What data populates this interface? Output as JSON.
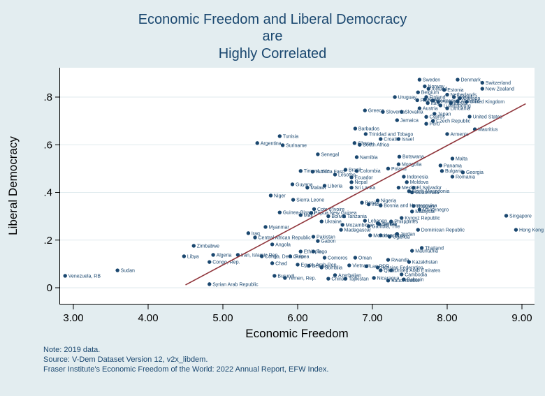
{
  "notes": [
    "Note: 2019 data.",
    "Source: V-Dem Dataset Version 12, v2x_libdem.",
    "Fraser Institute's Economic Freedom of the World: 2022 Annual Report, EFW Index."
  ],
  "colors": {
    "background": "#e3edf0",
    "plot_background": "#ffffff",
    "grid": "#dfeaee",
    "marker": "#1a476f",
    "label": "#1a476f",
    "trend_line": "#90353b",
    "axis": "#000000",
    "title": "#1a476f",
    "note": "#1a476f"
  },
  "chart_data": {
    "type": "scatter",
    "title": "Economic Freedom and Liberal Democracy are Highly Correlated",
    "title_lines": [
      "Economic Freedom and Liberal Democracy",
      "are",
      "Highly Correlated"
    ],
    "xlabel": "Economic Freedom",
    "ylabel": "Liberal Democracy",
    "xlim": [
      2.81,
      9.15
    ],
    "ylim": [
      -0.07,
      0.92
    ],
    "grid": true,
    "legend": "none",
    "xticks": {
      "values": [
        3,
        4,
        5,
        6,
        7,
        8,
        9
      ],
      "labels": [
        "3.00",
        "4.00",
        "5.00",
        "6.00",
        "7.00",
        "8.00",
        "9.00"
      ]
    },
    "yticks": {
      "values": [
        0,
        0.2,
        0.4,
        0.6,
        0.8
      ],
      "labels": [
        "0",
        ".2",
        ".4",
        ".6",
        ".8"
      ]
    },
    "trend_line": {
      "x1": 4.5,
      "y1": 0.012,
      "x2": 9.05,
      "y2": 0.772
    },
    "point_format": [
      "label",
      "x",
      "y"
    ],
    "points": [
      [
        "Venezuela, RB",
        2.89,
        0.05
      ],
      [
        "Sudan",
        3.59,
        0.073
      ],
      [
        "Libya",
        4.48,
        0.132
      ],
      [
        "Zimbabwe",
        4.61,
        0.176
      ],
      [
        "Syrian Arab Republic",
        4.82,
        0.015
      ],
      [
        "Congo, Rep.",
        4.82,
        0.108
      ],
      [
        "Algeria",
        4.87,
        0.138
      ],
      [
        "Iran, Islamic Rep.",
        5.2,
        0.138
      ],
      [
        "Iraq",
        5.34,
        0.229
      ],
      [
        "Central African Republic",
        5.43,
        0.211
      ],
      [
        "Congo, Dem. Rep.",
        5.52,
        0.132
      ],
      [
        "Myanmar",
        5.57,
        0.255
      ],
      [
        "Niger",
        5.64,
        0.387
      ],
      [
        "Angola",
        5.66,
        0.182
      ],
      [
        "Chad",
        5.66,
        0.103
      ],
      [
        "Burundi",
        5.69,
        0.05
      ],
      [
        "Guinea-Bissau",
        5.76,
        0.316
      ],
      [
        "Tunisia",
        5.76,
        0.636
      ],
      [
        "Argentina",
        5.46,
        0.607
      ],
      [
        "Suriname",
        5.8,
        0.598
      ],
      [
        "Yemen, Rep.",
        5.83,
        0.041
      ],
      [
        "Guinea",
        5.9,
        0.132
      ],
      [
        "Guyana",
        5.93,
        0.434
      ],
      [
        "Sierra Leone",
        5.94,
        0.369
      ],
      [
        "Egypt, Arab Rep.",
        6.0,
        0.097
      ],
      [
        "Timor-Leste",
        6.04,
        0.49
      ],
      [
        "Ethiopia",
        6.04,
        0.152
      ],
      [
        "Mali",
        6.04,
        0.305
      ],
      [
        "Malawi",
        6.13,
        0.42
      ],
      [
        "Belarus",
        6.15,
        0.092
      ],
      [
        "Papua New Guinea",
        6.18,
        0.314
      ],
      [
        "Togo",
        6.21,
        0.152
      ],
      [
        "Burkina Faso",
        6.2,
        0.487
      ],
      [
        "Pakistan",
        6.21,
        0.214
      ],
      [
        "Cote d'Ivoire",
        6.22,
        0.33
      ],
      [
        "Senegal",
        6.27,
        0.56
      ],
      [
        "Gabon",
        6.27,
        0.196
      ],
      [
        "Somalia",
        6.32,
        0.085
      ],
      [
        "Ukraine",
        6.32,
        0.278
      ],
      [
        "Liberia",
        6.36,
        0.428
      ],
      [
        "Comoros",
        6.36,
        0.126
      ],
      [
        "Bolivia",
        6.41,
        0.3
      ],
      [
        "China",
        6.41,
        0.038
      ],
      [
        "Azerbaijan",
        6.5,
        0.053
      ],
      [
        "Lesotho",
        6.5,
        0.475
      ],
      [
        "Madagascar",
        6.58,
        0.243
      ],
      [
        "Mozambique",
        6.6,
        0.264
      ],
      [
        "Tanzania",
        6.62,
        0.3
      ],
      [
        "Brazil",
        6.64,
        0.495
      ],
      [
        "Tajikistan",
        6.64,
        0.038
      ],
      [
        "Nepal",
        6.72,
        0.443
      ],
      [
        "Sri Lanka",
        6.72,
        0.42
      ],
      [
        "Ecuador",
        6.72,
        0.463
      ],
      [
        "Ghana",
        6.76,
        0.607
      ],
      [
        "Barbados",
        6.77,
        0.668
      ],
      [
        "Oman",
        6.77,
        0.126
      ],
      [
        "Colombia",
        6.79,
        0.49
      ],
      [
        "Namibia",
        6.79,
        0.548
      ],
      [
        "South Africa",
        6.83,
        0.6
      ],
      [
        "Benin",
        6.86,
        0.357
      ],
      [
        "Greece",
        6.9,
        0.744
      ],
      [
        "Lebanon",
        6.9,
        0.281
      ],
      [
        "Trinidad and Tobago",
        6.91,
        0.645
      ],
      [
        "Vietnam",
        6.69,
        0.094
      ],
      [
        "Lao PDR",
        6.92,
        0.09
      ],
      [
        "India",
        6.95,
        0.35
      ],
      [
        "Gambia, The",
        6.95,
        0.258
      ],
      [
        "Morocco",
        6.97,
        0.22
      ],
      [
        "Nicaragua",
        7.02,
        0.041
      ],
      [
        "Nigeria",
        7.07,
        0.366
      ],
      [
        "Zambia",
        7.07,
        0.27
      ],
      [
        "Russian Federation",
        7.07,
        0.085
      ],
      [
        "Serbia",
        7.09,
        0.267
      ],
      [
        "Croatia",
        7.11,
        0.624
      ],
      [
        "Bosnia and Herzegovina",
        7.11,
        0.345
      ],
      [
        "Honduras",
        7.11,
        0.22
      ],
      [
        "Qatar",
        7.11,
        0.073
      ],
      [
        "Slovenia",
        7.14,
        0.738
      ],
      [
        "Poland",
        7.21,
        0.5
      ],
      [
        "Rwanda",
        7.21,
        0.117
      ],
      [
        "Saudi Arabia",
        7.21,
        0.03
      ],
      [
        "Uganda",
        7.23,
        0.214
      ],
      [
        "Philippines",
        7.25,
        0.278
      ],
      [
        "United Arab Emirates",
        7.25,
        0.073
      ],
      [
        "Uruguay",
        7.3,
        0.8
      ],
      [
        "Jamaica",
        7.33,
        0.703
      ],
      [
        "Jordan",
        7.33,
        0.226
      ],
      [
        "Mongolia",
        7.35,
        0.518
      ],
      [
        "Mexico",
        7.35,
        0.42
      ],
      [
        "Israel",
        7.35,
        0.624
      ],
      [
        "Botswana",
        7.36,
        0.55
      ],
      [
        "Slovakia",
        7.39,
        0.738
      ],
      [
        "Kyrgyz Republic",
        7.39,
        0.293
      ],
      [
        "Cambodia",
        7.39,
        0.056
      ],
      [
        "Indonesia",
        7.42,
        0.466
      ],
      [
        "Bahrain",
        7.42,
        0.035
      ],
      [
        "Moldova",
        7.46,
        0.443
      ],
      [
        "Kazakhstan",
        7.49,
        0.108
      ],
      [
        "North Macedonia",
        7.49,
        0.405
      ],
      [
        "Guatemala",
        7.53,
        0.4
      ],
      [
        "Malaysia",
        7.53,
        0.32
      ],
      [
        "Mauritania",
        7.53,
        0.155
      ],
      [
        "Hungary",
        7.55,
        0.343
      ],
      [
        "El Salvador",
        7.55,
        0.42
      ],
      [
        "France",
        7.6,
        0.787
      ],
      [
        "Belgium",
        7.61,
        0.82
      ],
      [
        "Dominican Republic",
        7.61,
        0.243
      ],
      [
        "Sweden",
        7.63,
        0.873
      ],
      [
        "Austria",
        7.63,
        0.753
      ],
      [
        "Montenegro",
        7.63,
        0.328
      ],
      [
        "Thailand",
        7.66,
        0.167
      ],
      [
        "Norway",
        7.7,
        0.845
      ],
      [
        "Spain",
        7.7,
        0.79
      ],
      [
        "Finland",
        7.72,
        0.8
      ],
      [
        "Peru",
        7.72,
        0.688
      ],
      [
        "Cyprus",
        7.72,
        0.717
      ],
      [
        "Italy",
        7.74,
        0.775
      ],
      [
        "Iceland",
        7.75,
        0.835
      ],
      [
        "Germany",
        7.81,
        0.785
      ],
      [
        "Czech Republic",
        7.81,
        0.7
      ],
      [
        "Japan",
        7.83,
        0.73
      ],
      [
        "Portugal",
        7.88,
        0.78
      ],
      [
        "Panama",
        7.91,
        0.513
      ],
      [
        "Luxembourg",
        7.91,
        0.765
      ],
      [
        "Bulgaria",
        7.93,
        0.49
      ],
      [
        "Estonia",
        7.96,
        0.83
      ],
      [
        "Netherlands",
        8.0,
        0.81
      ],
      [
        "Lithuania",
        8.0,
        0.753
      ],
      [
        "Armenia",
        8.0,
        0.645
      ],
      [
        "Latvia",
        8.05,
        0.775
      ],
      [
        "Malta",
        8.07,
        0.542
      ],
      [
        "Romania",
        8.07,
        0.466
      ],
      [
        "Ireland",
        8.09,
        0.8
      ],
      [
        "Denmark",
        8.14,
        0.873
      ],
      [
        "Australia",
        8.14,
        0.783
      ],
      [
        "Canada",
        8.17,
        0.795
      ],
      [
        "Georgia",
        8.21,
        0.484
      ],
      [
        "United Kingdom",
        8.26,
        0.78
      ],
      [
        "United States",
        8.3,
        0.718
      ],
      [
        "Mauritius",
        8.37,
        0.665
      ],
      [
        "Switzerland",
        8.47,
        0.86
      ],
      [
        "New Zealand",
        8.47,
        0.835
      ],
      [
        "Singapore",
        8.79,
        0.302
      ],
      [
        "Hong Kong SAR, China",
        8.92,
        0.243
      ]
    ]
  }
}
